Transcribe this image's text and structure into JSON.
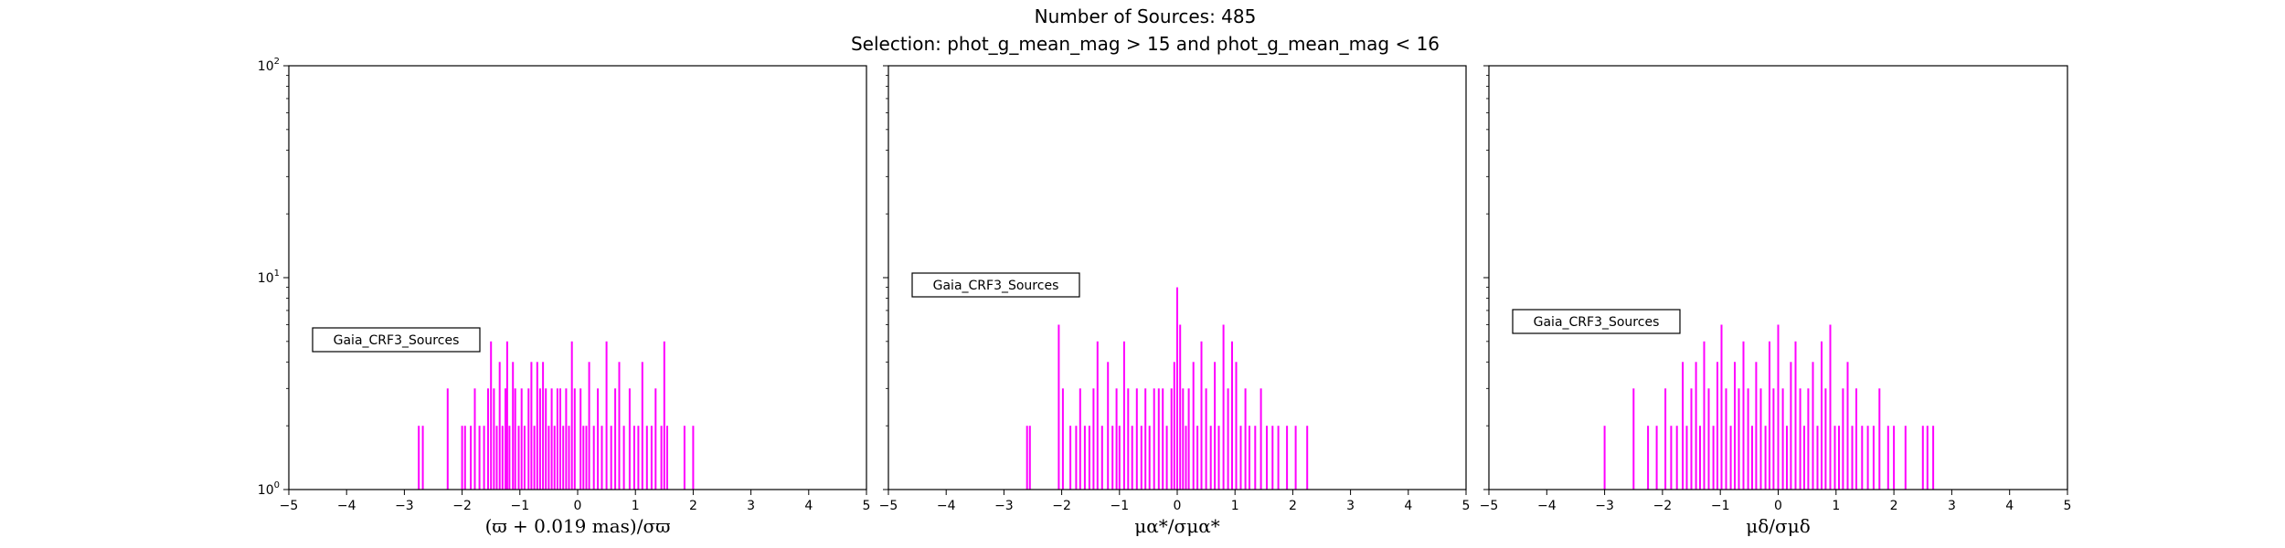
{
  "figure": {
    "title_line1": "Number of Sources: 485",
    "title_line2": "Selection: phot_g_mean_mag > 15 and phot_g_mean_mag < 16",
    "bar_color": "#ff00ff",
    "y_tick_labels": [
      "10^0",
      "10^1",
      "10^2"
    ]
  },
  "chart_data": [
    {
      "type": "bar",
      "xlabel": "(ϖ + 0.019 mas)/σϖ",
      "legend": "Gaia_CRF3_Sources",
      "legend_loc": "center-left",
      "xlim": [
        -5,
        5
      ],
      "xticks": [
        -5,
        -4,
        -3,
        -2,
        -1,
        0,
        1,
        2,
        3,
        4,
        5
      ],
      "ylim": [
        1,
        100
      ],
      "yscale": "log",
      "x": [
        -2.75,
        -2.68,
        -2.25,
        -2.0,
        -1.95,
        -1.85,
        -1.78,
        -1.7,
        -1.62,
        -1.55,
        -1.5,
        -1.45,
        -1.4,
        -1.35,
        -1.3,
        -1.25,
        -1.22,
        -1.18,
        -1.12,
        -1.08,
        -1.02,
        -0.97,
        -0.92,
        -0.85,
        -0.8,
        -0.75,
        -0.7,
        -0.65,
        -0.6,
        -0.55,
        -0.5,
        -0.45,
        -0.4,
        -0.35,
        -0.3,
        -0.25,
        -0.2,
        -0.15,
        -0.1,
        -0.05,
        0.05,
        0.1,
        0.15,
        0.2,
        0.28,
        0.35,
        0.42,
        0.5,
        0.58,
        0.65,
        0.72,
        0.8,
        0.9,
        0.98,
        1.05,
        1.12,
        1.2,
        1.28,
        1.35,
        1.45,
        1.5,
        1.55,
        1.85,
        2.0
      ],
      "values": [
        2,
        2,
        3,
        2,
        2,
        2,
        3,
        2,
        2,
        3,
        5,
        3,
        2,
        4,
        2,
        3,
        5,
        2,
        4,
        3,
        2,
        3,
        2,
        3,
        4,
        2,
        4,
        3,
        4,
        3,
        2,
        3,
        2,
        3,
        3,
        2,
        3,
        2,
        5,
        3,
        3,
        2,
        2,
        4,
        2,
        3,
        2,
        5,
        2,
        3,
        4,
        2,
        3,
        2,
        2,
        4,
        2,
        2,
        3,
        2,
        5,
        2,
        2,
        2
      ]
    },
    {
      "type": "bar",
      "xlabel": "μα*/σμα*",
      "legend": "Gaia_CRF3_Sources",
      "legend_loc": "center-left",
      "xlim": [
        -5,
        5
      ],
      "xticks": [
        -5,
        -4,
        -3,
        -2,
        -1,
        0,
        1,
        2,
        3,
        4,
        5
      ],
      "ylim": [
        1,
        100
      ],
      "yscale": "log",
      "x": [
        -2.6,
        -2.55,
        -2.05,
        -1.98,
        -1.85,
        -1.75,
        -1.68,
        -1.6,
        -1.52,
        -1.45,
        -1.38,
        -1.3,
        -1.2,
        -1.12,
        -1.05,
        -1.0,
        -0.92,
        -0.85,
        -0.78,
        -0.7,
        -0.62,
        -0.55,
        -0.48,
        -0.4,
        -0.32,
        -0.25,
        -0.18,
        -0.1,
        -0.05,
        0.0,
        0.05,
        0.1,
        0.15,
        0.2,
        0.28,
        0.35,
        0.42,
        0.5,
        0.58,
        0.65,
        0.72,
        0.8,
        0.88,
        0.95,
        1.02,
        1.1,
        1.18,
        1.25,
        1.35,
        1.45,
        1.55,
        1.65,
        1.75,
        1.9,
        2.05,
        2.25
      ],
      "values": [
        2,
        2,
        6,
        3,
        2,
        2,
        3,
        2,
        2,
        3,
        5,
        2,
        4,
        2,
        3,
        2,
        5,
        3,
        2,
        3,
        2,
        3,
        2,
        3,
        3,
        3,
        2,
        3,
        4,
        9,
        6,
        3,
        2,
        3,
        4,
        2,
        5,
        3,
        2,
        4,
        2,
        6,
        3,
        5,
        4,
        2,
        3,
        2,
        2,
        3,
        2,
        2,
        2,
        2,
        2,
        2
      ]
    },
    {
      "type": "bar",
      "xlabel": "μδ/σμδ",
      "legend": "Gaia_CRF3_Sources",
      "legend_loc": "center-left",
      "xlim": [
        -5,
        5
      ],
      "xticks": [
        -5,
        -4,
        -3,
        -2,
        -1,
        0,
        1,
        2,
        3,
        4,
        5
      ],
      "ylim": [
        1,
        100
      ],
      "yscale": "log",
      "x": [
        -3.0,
        -2.5,
        -2.25,
        -2.1,
        -1.95,
        -1.85,
        -1.75,
        -1.65,
        -1.58,
        -1.5,
        -1.42,
        -1.35,
        -1.28,
        -1.2,
        -1.12,
        -1.05,
        -0.98,
        -0.9,
        -0.82,
        -0.75,
        -0.68,
        -0.6,
        -0.52,
        -0.45,
        -0.38,
        -0.3,
        -0.22,
        -0.15,
        -0.08,
        0.0,
        0.08,
        0.15,
        0.22,
        0.3,
        0.38,
        0.45,
        0.52,
        0.6,
        0.68,
        0.75,
        0.82,
        0.9,
        0.98,
        1.05,
        1.12,
        1.2,
        1.28,
        1.35,
        1.45,
        1.55,
        1.65,
        1.75,
        1.9,
        2.0,
        2.2,
        2.5,
        2.58,
        2.68
      ],
      "values": [
        2,
        3,
        2,
        2,
        3,
        2,
        2,
        4,
        2,
        3,
        4,
        2,
        5,
        3,
        2,
        4,
        6,
        3,
        2,
        4,
        3,
        5,
        3,
        2,
        4,
        3,
        2,
        5,
        3,
        6,
        3,
        2,
        4,
        5,
        3,
        2,
        3,
        4,
        2,
        5,
        3,
        6,
        2,
        2,
        3,
        4,
        2,
        3,
        2,
        2,
        2,
        3,
        2,
        2,
        2,
        2,
        2,
        2
      ]
    }
  ]
}
